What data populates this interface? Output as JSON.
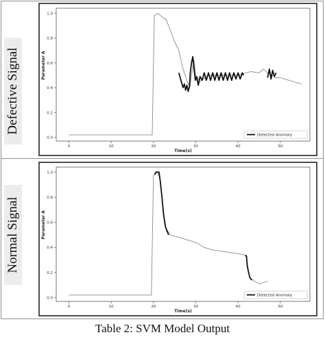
{
  "panels": [
    {
      "label": "Defective Signal"
    },
    {
      "label": "Normal Signal"
    }
  ],
  "caption": "Table 2: SVM Model Output",
  "chart_data": [
    {
      "type": "line",
      "xlabel": "Time(s)",
      "ylabel": "Parameter A",
      "xlim": [
        -3,
        57
      ],
      "ylim": [
        -0.03,
        1.04
      ],
      "xticks": [
        0,
        10,
        20,
        30,
        40,
        50
      ],
      "yticks": [
        0.0,
        0.2,
        0.4,
        0.6,
        0.8,
        1.0
      ],
      "legend": {
        "label": "Detected Anomaly",
        "placement": "bottom-right"
      },
      "grid": false,
      "series": [
        {
          "role": "signal",
          "x": [
            0,
            19.7,
            20.2,
            21,
            22,
            23,
            24,
            25,
            26,
            27,
            28,
            28.6,
            29.2,
            29.6,
            30,
            31,
            33,
            35,
            37,
            39,
            40,
            41,
            43,
            45,
            46,
            47,
            48,
            49,
            50,
            51,
            52,
            53,
            54,
            55
          ],
          "y": [
            0.02,
            0.02,
            0.98,
            1.0,
            0.97,
            0.95,
            0.86,
            0.77,
            0.7,
            0.55,
            0.45,
            0.4,
            0.55,
            0.62,
            0.5,
            0.45,
            0.5,
            0.5,
            0.5,
            0.5,
            0.5,
            0.51,
            0.53,
            0.52,
            0.55,
            0.52,
            0.5,
            0.48,
            0.48,
            0.47,
            0.46,
            0.45,
            0.44,
            0.43
          ]
        },
        {
          "role": "anomaly",
          "x": [
            26.0,
            26.5,
            27.0,
            27.3,
            27.6,
            27.9,
            28.2,
            28.5,
            28.7,
            29.0,
            29.3,
            29.6,
            29.9,
            30.2,
            30.6,
            31.0,
            31.5,
            32.0,
            32.5,
            33.0,
            33.5,
            34.0,
            34.5,
            35.0,
            35.5,
            36.0,
            36.5,
            37.0,
            37.5,
            38.0,
            38.5,
            39.0,
            39.5,
            40.0,
            40.5,
            41.0,
            41.3
          ],
          "y": [
            0.52,
            0.46,
            0.4,
            0.43,
            0.38,
            0.42,
            0.37,
            0.41,
            0.52,
            0.6,
            0.65,
            0.55,
            0.46,
            0.49,
            0.42,
            0.49,
            0.46,
            0.52,
            0.46,
            0.52,
            0.46,
            0.52,
            0.46,
            0.52,
            0.46,
            0.52,
            0.46,
            0.52,
            0.46,
            0.52,
            0.46,
            0.52,
            0.47,
            0.52,
            0.47,
            0.52,
            0.5
          ]
        },
        {
          "role": "anomaly",
          "x": [
            47.0,
            47.4,
            47.8,
            48.2,
            48.6,
            49.0
          ],
          "y": [
            0.48,
            0.55,
            0.47,
            0.54,
            0.49,
            0.52
          ]
        }
      ]
    },
    {
      "type": "line",
      "xlabel": "Time(s)",
      "ylabel": "Parameter A",
      "xlim": [
        -3,
        57
      ],
      "ylim": [
        -0.03,
        1.04
      ],
      "xticks": [
        0,
        10,
        20,
        30,
        40,
        50
      ],
      "yticks": [
        0.0,
        0.2,
        0.4,
        0.6,
        0.8,
        1.0
      ],
      "legend": {
        "label": "Detected Anomaly",
        "placement": "bottom-right"
      },
      "grid": false,
      "series": [
        {
          "role": "signal",
          "x": [
            0,
            19.5,
            20.0,
            20.5,
            21.0,
            21.5,
            22.0,
            22.5,
            23.0,
            24.0,
            26.0,
            28.0,
            30.0,
            32.0,
            34.0,
            36.0,
            38.0,
            40.0,
            41.5,
            42.0,
            42.5,
            43.0,
            44.0,
            45.0,
            46.0,
            47.0
          ],
          "y": [
            0.02,
            0.02,
            0.97,
            1.0,
            1.0,
            0.95,
            0.8,
            0.65,
            0.55,
            0.5,
            0.48,
            0.46,
            0.44,
            0.4,
            0.38,
            0.37,
            0.36,
            0.35,
            0.34,
            0.32,
            0.2,
            0.15,
            0.13,
            0.11,
            0.12,
            0.13
          ]
        },
        {
          "role": "anomaly",
          "x": [
            20.3,
            20.6,
            21.0,
            21.3,
            21.6,
            22.0,
            22.4,
            22.8,
            23.2,
            23.6
          ],
          "y": [
            0.98,
            1.0,
            1.0,
            1.0,
            0.93,
            0.8,
            0.66,
            0.57,
            0.53,
            0.5
          ]
        },
        {
          "role": "anomaly",
          "x": [
            41.8,
            42.0,
            42.2,
            42.5,
            42.8,
            43.0,
            43.3
          ],
          "y": [
            0.34,
            0.33,
            0.25,
            0.2,
            0.16,
            0.15,
            0.14
          ]
        }
      ]
    }
  ]
}
